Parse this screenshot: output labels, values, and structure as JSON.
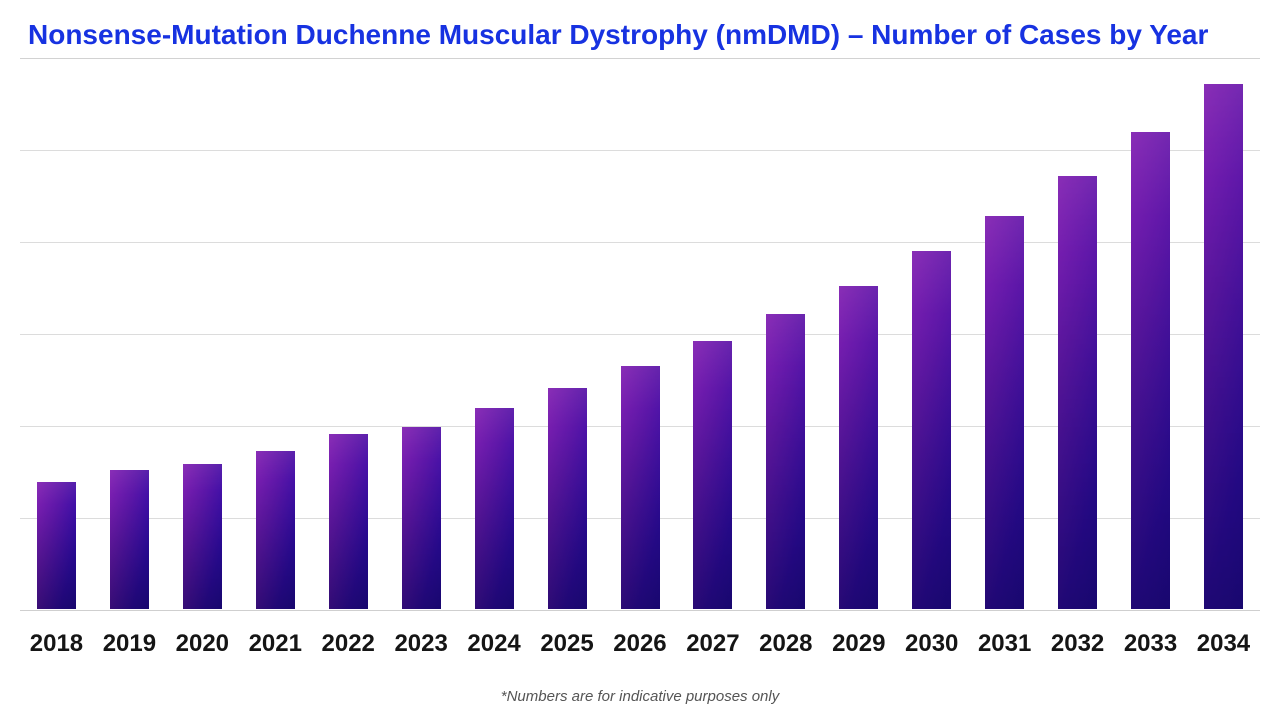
{
  "title": {
    "text": "Nonsense-Mutation Duchenne Muscular Dystrophy (nmDMD) – Number of Cases by Year",
    "color": "#1732e1"
  },
  "footnote": "*Numbers are for indicative purposes only",
  "chart_data": {
    "type": "bar",
    "title": "Nonsense-Mutation Duchenne Muscular Dystrophy (nmDMD) – Number of Cases by Year",
    "categories": [
      "2018",
      "2019",
      "2020",
      "2021",
      "2022",
      "2023",
      "2024",
      "2025",
      "2026",
      "2027",
      "2028",
      "2029",
      "2030",
      "2031",
      "2032",
      "2033",
      "2034"
    ],
    "values": [
      1.38,
      1.51,
      1.58,
      1.72,
      1.9,
      1.98,
      2.18,
      2.4,
      2.64,
      2.91,
      3.21,
      3.51,
      3.89,
      4.27,
      4.71,
      5.18,
      5.71
    ],
    "xlabel": "",
    "ylabel": "",
    "ylim": [
      0,
      6
    ],
    "y_axis_tick_labels": "none",
    "gridlines": "horizontal",
    "gridline_count": 7,
    "legend": "none",
    "bar_gradient": [
      "#8221b2",
      "#220a9e"
    ],
    "grid_color": "#dcdcdc"
  }
}
